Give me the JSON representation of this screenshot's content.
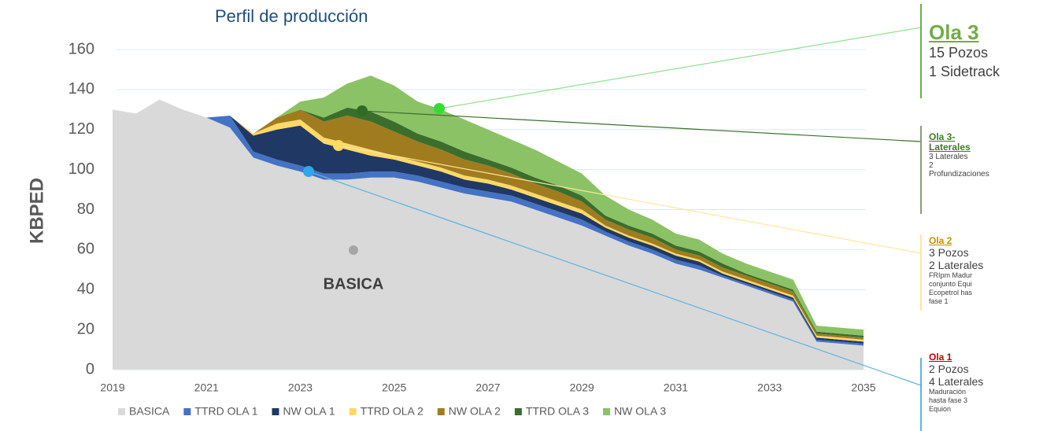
{
  "chart_data": {
    "type": "stacked-area",
    "title": "Perfil de producción",
    "ylabel": "KBPED",
    "annotation": "BASICA",
    "x": [
      2019,
      2019.5,
      2020,
      2020.5,
      2021,
      2021.5,
      2022,
      2022.5,
      2023,
      2023.5,
      2024,
      2024.5,
      2025,
      2025.5,
      2026,
      2026.5,
      2027,
      2027.5,
      2028,
      2028.5,
      2029,
      2029.5,
      2030,
      2030.5,
      2031,
      2031.5,
      2032,
      2032.5,
      2033,
      2033.5,
      2034,
      2034.5,
      2035
    ],
    "series": [
      {
        "name": "BASICA",
        "color": "#d9d9d9",
        "values": [
          130,
          128,
          135,
          130,
          126,
          121,
          106,
          102,
          99,
          95,
          95,
          96,
          96,
          94,
          91,
          88,
          86,
          84,
          80,
          76,
          72,
          67,
          62,
          58,
          53,
          50,
          46,
          42,
          38,
          34,
          14,
          13,
          12
        ]
      },
      {
        "name": "TTRD OLA 1",
        "color": "#4472c4",
        "values": [
          0,
          0,
          0,
          0,
          0,
          6,
          3,
          3,
          3,
          3,
          3,
          3,
          3,
          3,
          3,
          3,
          3,
          3,
          3,
          3,
          3,
          2,
          2,
          2,
          2,
          2,
          1,
          1,
          1,
          1,
          1,
          1,
          1
        ]
      },
      {
        "name": "NW OLA 1",
        "color": "#203864",
        "values": [
          0,
          0,
          0,
          0,
          0,
          0,
          8,
          15,
          20,
          15,
          12,
          8,
          6,
          5,
          5,
          4,
          4,
          3,
          3,
          3,
          3,
          2,
          2,
          2,
          2,
          2,
          1,
          1,
          1,
          1,
          1,
          1,
          1
        ]
      },
      {
        "name": "TTRD OLA 2",
        "color": "#ffd966",
        "values": [
          0,
          0,
          0,
          0,
          0,
          0,
          1,
          3,
          3,
          3,
          3,
          3,
          2,
          2,
          2,
          2,
          2,
          2,
          2,
          2,
          2,
          1,
          1,
          1,
          1,
          1,
          1,
          1,
          1,
          1,
          1,
          1,
          1
        ]
      },
      {
        "name": "NW OLA 2",
        "color": "#a07c1f",
        "values": [
          0,
          0,
          0,
          0,
          0,
          0,
          0,
          3,
          5,
          8,
          14,
          14,
          12,
          10,
          9,
          8,
          7,
          6,
          5,
          5,
          4,
          3,
          3,
          3,
          2,
          2,
          2,
          2,
          2,
          2,
          1,
          1,
          1
        ]
      },
      {
        "name": "TTRD OLA 3",
        "color": "#3b6e2c",
        "values": [
          0,
          0,
          0,
          0,
          0,
          0,
          0,
          0,
          0,
          2,
          4,
          5,
          5,
          4,
          4,
          4,
          3,
          3,
          3,
          3,
          3,
          2,
          2,
          2,
          2,
          2,
          2,
          1,
          1,
          1,
          1,
          1,
          1
        ]
      },
      {
        "name": "NW OLA 3",
        "color": "#8cc266",
        "values": [
          0,
          0,
          0,
          0,
          0,
          0,
          0,
          0,
          4,
          10,
          12,
          18,
          18,
          16,
          16,
          16,
          15,
          14,
          14,
          12,
          11,
          10,
          8,
          7,
          6,
          6,
          5,
          5,
          5,
          5,
          3,
          3,
          3
        ]
      }
    ],
    "xlim": [
      2019,
      2035
    ],
    "xticks": [
      2019,
      2021,
      2023,
      2025,
      2027,
      2029,
      2031,
      2033,
      2035
    ],
    "ylim": [
      0,
      160
    ],
    "yticks": [
      0,
      20,
      40,
      60,
      80,
      100,
      120,
      140,
      160
    ],
    "grid": true,
    "legend": "bottom"
  },
  "callouts": [
    {
      "title": [
        "Ola 3"
      ],
      "lines": [
        "15 Pozos",
        "1 Sidetrack"
      ]
    },
    {
      "title": [
        "Ola 3-",
        "Laterales"
      ],
      "lines": [
        "3 Laterales",
        "2",
        "Profundizaciones"
      ]
    },
    {
      "title": [
        "Ola 2"
      ],
      "lines": [
        "3 Pozos",
        "2 Laterales",
        "FRIpm Madur",
        "conjunto Equi",
        "Ecopetrol has",
        "fase 1"
      ]
    },
    {
      "title": [
        "Ola 1"
      ],
      "lines": [
        "2 Pozos",
        "4 Laterales",
        "Maduración",
        "hasta fase 3",
        "Equion"
      ]
    }
  ]
}
